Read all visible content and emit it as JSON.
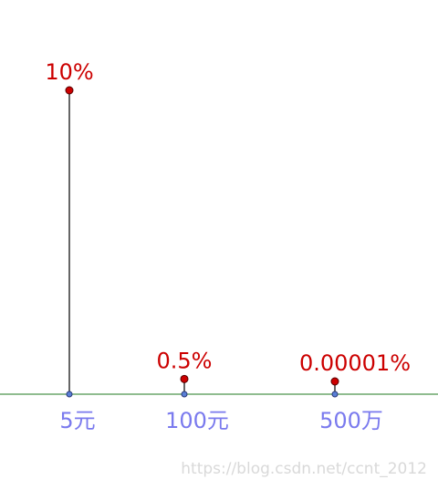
{
  "chart_data": {
    "type": "stem",
    "categories": [
      "5元",
      "100元",
      "500万"
    ],
    "values": [
      10,
      0.5,
      1e-05
    ],
    "value_labels": [
      "10%",
      "0.5%",
      "0.00001%"
    ],
    "title": "",
    "xlabel": "",
    "ylabel": "",
    "grid": false,
    "legend": "none",
    "colors": {
      "stem": "#666666",
      "point": "#cc0000",
      "value_label": "#cc0000",
      "category_label": "#7a7aee",
      "axis": "#8fbc8f",
      "base_point": "#5a7fd6"
    }
  },
  "watermark": "https://blog.csdn.net/ccnt_2012"
}
